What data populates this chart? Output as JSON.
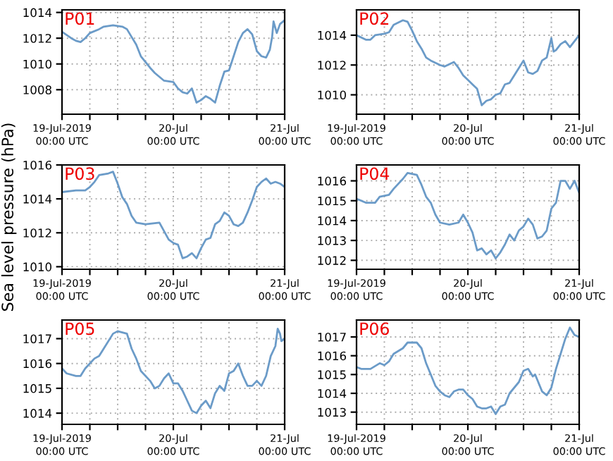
{
  "chart_data": [
    {
      "type": "line",
      "title": "P01",
      "x": [
        "2019-07-19T00:00",
        "2019-07-19T02:00",
        "2019-07-19T03:00",
        "2019-07-19T04:00",
        "2019-07-19T05:00",
        "2019-07-19T06:00",
        "2019-07-19T08:00",
        "2019-07-19T09:00",
        "2019-07-19T11:00",
        "2019-07-19T13:00",
        "2019-07-19T14:00",
        "2019-07-19T15:00",
        "2019-07-19T16:00",
        "2019-07-19T17:00",
        "2019-07-19T19:00",
        "2019-07-19T20:00",
        "2019-07-19T22:00",
        "2019-07-20T00:00",
        "2019-07-20T01:00",
        "2019-07-20T02:00",
        "2019-07-20T03:00",
        "2019-07-20T04:00",
        "2019-07-20T05:00",
        "2019-07-20T06:00",
        "2019-07-20T07:00",
        "2019-07-20T08:00",
        "2019-07-20T09:00",
        "2019-07-20T10:00",
        "2019-07-20T11:00",
        "2019-07-20T12:00",
        "2019-07-20T13:00",
        "2019-07-20T14:00",
        "2019-07-20T15:00",
        "2019-07-20T16:00",
        "2019-07-20T17:00",
        "2019-07-20T18:00",
        "2019-07-20T19:00",
        "2019-07-20T20:00",
        "2019-07-20T20:48",
        "2019-07-20T21:18",
        "2019-07-20T21:36",
        "2019-07-20T22:18",
        "2019-07-20T23:00",
        "2019-07-21T00:00"
      ],
      "series": [
        {
          "color": "#6b9bc8",
          "values": [
            1012.5,
            1012.0,
            1011.8,
            1011.7,
            1012.0,
            1012.4,
            1012.7,
            1012.9,
            1013.0,
            1012.9,
            1012.7,
            1012.1,
            1011.5,
            1010.6,
            1009.7,
            1009.3,
            1008.7,
            1008.6,
            1008.1,
            1007.8,
            1007.7,
            1008.1,
            1007.0,
            1007.2,
            1007.5,
            1007.3,
            1007.0,
            1008.3,
            1009.4,
            1009.5,
            1010.6,
            1011.7,
            1012.4,
            1012.7,
            1012.3,
            1011.0,
            1010.6,
            1010.5,
            1011.1,
            1012.1,
            1013.3,
            1012.4,
            1013.1,
            1013.4
          ]
        }
      ],
      "xlim": [
        "2019-07-19T00:00",
        "2019-07-21T00:00"
      ],
      "ylim": [
        1006.1,
        1014.2
      ],
      "yticks": [
        1008,
        1010,
        1012,
        1014
      ],
      "xticks": [
        {
          "value": "2019-07-19T00:00",
          "label": "19-Jul-2019\n00:00 UTC"
        },
        {
          "value": "2019-07-19T06:00",
          "label": null
        },
        {
          "value": "2019-07-19T12:00",
          "label": null
        },
        {
          "value": "2019-07-19T18:00",
          "label": null
        },
        {
          "value": "2019-07-20T00:00",
          "label": "20-Jul\n00:00 UTC"
        },
        {
          "value": "2019-07-20T06:00",
          "label": null
        },
        {
          "value": "2019-07-20T12:00",
          "label": null
        },
        {
          "value": "2019-07-20T18:00",
          "label": null
        },
        {
          "value": "2019-07-21T00:00",
          "label": "21-Jul\n00:00 UTC"
        }
      ],
      "grid": true
    },
    {
      "type": "line",
      "title": "P02",
      "x": [
        "2019-07-19T00:00",
        "2019-07-19T02:00",
        "2019-07-19T03:00",
        "2019-07-19T04:00",
        "2019-07-19T06:00",
        "2019-07-19T07:00",
        "2019-07-19T08:00",
        "2019-07-19T10:00",
        "2019-07-19T11:00",
        "2019-07-19T12:00",
        "2019-07-19T13:00",
        "2019-07-19T14:00",
        "2019-07-19T15:00",
        "2019-07-19T16:00",
        "2019-07-19T18:00",
        "2019-07-19T19:00",
        "2019-07-19T21:00",
        "2019-07-19T22:00",
        "2019-07-19T23:00",
        "2019-07-20T00:00",
        "2019-07-20T01:00",
        "2019-07-20T02:00",
        "2019-07-20T03:00",
        "2019-07-20T04:00",
        "2019-07-20T05:00",
        "2019-07-20T06:00",
        "2019-07-20T07:00",
        "2019-07-20T08:00",
        "2019-07-20T09:00",
        "2019-07-20T10:00",
        "2019-07-20T11:00",
        "2019-07-20T12:00",
        "2019-07-20T13:00",
        "2019-07-20T14:00",
        "2019-07-20T15:00",
        "2019-07-20T16:00",
        "2019-07-20T17:00",
        "2019-07-20T18:00",
        "2019-07-20T18:30",
        "2019-07-20T19:00",
        "2019-07-20T20:00",
        "2019-07-20T21:00",
        "2019-07-20T22:00",
        "2019-07-20T23:00",
        "2019-07-21T00:00"
      ],
      "series": [
        {
          "color": "#6b9bc8",
          "values": [
            1014.0,
            1013.7,
            1013.7,
            1014.0,
            1014.1,
            1014.2,
            1014.7,
            1015.0,
            1014.9,
            1014.3,
            1013.6,
            1013.1,
            1012.5,
            1012.3,
            1012.0,
            1011.9,
            1012.2,
            1011.8,
            1011.3,
            1011.0,
            1010.7,
            1010.4,
            1009.3,
            1009.6,
            1009.7,
            1010.0,
            1010.1,
            1010.7,
            1010.8,
            1011.3,
            1011.8,
            1012.3,
            1011.5,
            1011.4,
            1011.6,
            1012.3,
            1012.5,
            1013.8,
            1012.9,
            1013.0,
            1013.4,
            1013.6,
            1013.2,
            1013.6,
            1014.0
          ]
        }
      ],
      "xlim": [
        "2019-07-19T00:00",
        "2019-07-21T00:00"
      ],
      "ylim": [
        1008.7,
        1015.7
      ],
      "yticks": [
        1010,
        1012,
        1014
      ],
      "xticks": [
        {
          "value": "2019-07-19T00:00",
          "label": "19-Jul-2019\n00:00 UTC"
        },
        {
          "value": "2019-07-19T06:00",
          "label": null
        },
        {
          "value": "2019-07-19T12:00",
          "label": null
        },
        {
          "value": "2019-07-19T18:00",
          "label": null
        },
        {
          "value": "2019-07-20T00:00",
          "label": "20-Jul\n00:00 UTC"
        },
        {
          "value": "2019-07-20T06:00",
          "label": null
        },
        {
          "value": "2019-07-20T12:00",
          "label": null
        },
        {
          "value": "2019-07-20T18:00",
          "label": null
        },
        {
          "value": "2019-07-21T00:00",
          "label": "21-Jul\n00:00 UTC"
        }
      ],
      "grid": true
    },
    {
      "type": "line",
      "title": "P03",
      "ylabel": "Sea level pressure (hPa)",
      "x": [
        "2019-07-19T00:00",
        "2019-07-19T03:00",
        "2019-07-19T05:00",
        "2019-07-19T06:00",
        "2019-07-19T07:00",
        "2019-07-19T08:00",
        "2019-07-19T10:00",
        "2019-07-19T11:00",
        "2019-07-19T12:00",
        "2019-07-19T13:00",
        "2019-07-19T14:00",
        "2019-07-19T15:00",
        "2019-07-19T16:00",
        "2019-07-19T18:00",
        "2019-07-19T21:00",
        "2019-07-19T22:00",
        "2019-07-19T23:00",
        "2019-07-20T00:00",
        "2019-07-20T01:00",
        "2019-07-20T02:00",
        "2019-07-20T03:00",
        "2019-07-20T04:00",
        "2019-07-20T05:00",
        "2019-07-20T06:00",
        "2019-07-20T07:00",
        "2019-07-20T08:00",
        "2019-07-20T09:00",
        "2019-07-20T10:00",
        "2019-07-20T11:00",
        "2019-07-20T12:00",
        "2019-07-20T13:00",
        "2019-07-20T14:00",
        "2019-07-20T15:00",
        "2019-07-20T16:00",
        "2019-07-20T17:00",
        "2019-07-20T18:00",
        "2019-07-20T19:00",
        "2019-07-20T20:00",
        "2019-07-20T21:00",
        "2019-07-20T22:00",
        "2019-07-20T23:00",
        "2019-07-21T00:00"
      ],
      "series": [
        {
          "color": "#6b9bc8",
          "values": [
            1014.4,
            1014.5,
            1014.5,
            1014.7,
            1015.0,
            1015.4,
            1015.5,
            1015.6,
            1014.9,
            1014.1,
            1013.7,
            1013.0,
            1012.6,
            1012.5,
            1012.6,
            1012.1,
            1011.6,
            1011.4,
            1011.3,
            1010.5,
            1010.6,
            1010.8,
            1010.5,
            1011.1,
            1011.6,
            1011.7,
            1012.5,
            1012.7,
            1013.2,
            1013.0,
            1012.5,
            1012.4,
            1012.6,
            1013.2,
            1013.9,
            1014.7,
            1015.0,
            1015.2,
            1014.9,
            1015.0,
            1014.9,
            1014.7
          ]
        }
      ],
      "xlim": [
        "2019-07-19T00:00",
        "2019-07-21T00:00"
      ],
      "ylim": [
        1009.85,
        1016.0
      ],
      "yticks": [
        1010,
        1012,
        1014,
        1016
      ],
      "xticks": [
        {
          "value": "2019-07-19T00:00",
          "label": "19-Jul-2019\n00:00 UTC"
        },
        {
          "value": "2019-07-19T06:00",
          "label": null
        },
        {
          "value": "2019-07-19T12:00",
          "label": null
        },
        {
          "value": "2019-07-19T18:00",
          "label": null
        },
        {
          "value": "2019-07-20T00:00",
          "label": "20-Jul\n00:00 UTC"
        },
        {
          "value": "2019-07-20T06:00",
          "label": null
        },
        {
          "value": "2019-07-20T12:00",
          "label": null
        },
        {
          "value": "2019-07-20T18:00",
          "label": null
        },
        {
          "value": "2019-07-21T00:00",
          "label": "21-Jul\n00:00 UTC"
        }
      ],
      "grid": true
    },
    {
      "type": "line",
      "title": "P04",
      "x": [
        "2019-07-19T00:00",
        "2019-07-19T02:00",
        "2019-07-19T04:00",
        "2019-07-19T05:00",
        "2019-07-19T07:00",
        "2019-07-19T08:00",
        "2019-07-19T10:00",
        "2019-07-19T11:00",
        "2019-07-19T13:00",
        "2019-07-19T14:00",
        "2019-07-19T15:00",
        "2019-07-19T16:00",
        "2019-07-19T17:00",
        "2019-07-19T18:00",
        "2019-07-19T20:00",
        "2019-07-19T22:00",
        "2019-07-19T23:00",
        "2019-07-20T00:00",
        "2019-07-20T01:00",
        "2019-07-20T02:00",
        "2019-07-20T03:00",
        "2019-07-20T04:00",
        "2019-07-20T05:00",
        "2019-07-20T06:00",
        "2019-07-20T07:00",
        "2019-07-20T08:00",
        "2019-07-20T09:00",
        "2019-07-20T10:00",
        "2019-07-20T11:00",
        "2019-07-20T12:00",
        "2019-07-20T13:00",
        "2019-07-20T14:00",
        "2019-07-20T15:00",
        "2019-07-20T16:00",
        "2019-07-20T17:00",
        "2019-07-20T18:00",
        "2019-07-20T19:00",
        "2019-07-20T20:00",
        "2019-07-20T21:00",
        "2019-07-20T22:00",
        "2019-07-20T23:00",
        "2019-07-21T00:00"
      ],
      "series": [
        {
          "color": "#6b9bc8",
          "values": [
            1015.1,
            1014.9,
            1014.9,
            1015.2,
            1015.3,
            1015.6,
            1016.1,
            1016.4,
            1016.3,
            1015.8,
            1015.2,
            1014.9,
            1014.3,
            1013.9,
            1013.8,
            1013.9,
            1014.3,
            1013.9,
            1013.4,
            1012.5,
            1012.6,
            1012.3,
            1012.5,
            1012.1,
            1012.4,
            1012.8,
            1013.3,
            1013.0,
            1013.5,
            1013.7,
            1014.1,
            1013.8,
            1013.1,
            1013.2,
            1013.5,
            1014.6,
            1014.9,
            1016.0,
            1016.0,
            1015.6,
            1016.0,
            1015.4
          ]
        }
      ],
      "xlim": [
        "2019-07-19T00:00",
        "2019-07-21T00:00"
      ],
      "ylim": [
        1011.55,
        1016.8
      ],
      "yticks": [
        1012,
        1013,
        1014,
        1015,
        1016
      ],
      "xticks": [
        {
          "value": "2019-07-19T00:00",
          "label": "19-Jul-2019\n00:00 UTC"
        },
        {
          "value": "2019-07-19T06:00",
          "label": null
        },
        {
          "value": "2019-07-19T12:00",
          "label": null
        },
        {
          "value": "2019-07-19T18:00",
          "label": null
        },
        {
          "value": "2019-07-20T00:00",
          "label": "20-Jul\n00:00 UTC"
        },
        {
          "value": "2019-07-20T06:00",
          "label": null
        },
        {
          "value": "2019-07-20T12:00",
          "label": null
        },
        {
          "value": "2019-07-20T18:00",
          "label": null
        },
        {
          "value": "2019-07-21T00:00",
          "label": "21-Jul\n00:00 UTC"
        }
      ],
      "grid": true
    },
    {
      "type": "line",
      "title": "P05",
      "x": [
        "2019-07-19T00:00",
        "2019-07-19T01:00",
        "2019-07-19T03:00",
        "2019-07-19T04:00",
        "2019-07-19T05:00",
        "2019-07-19T07:00",
        "2019-07-19T08:00",
        "2019-07-19T09:00",
        "2019-07-19T11:00",
        "2019-07-19T12:00",
        "2019-07-19T14:00",
        "2019-07-19T15:00",
        "2019-07-19T16:00",
        "2019-07-19T17:00",
        "2019-07-19T19:00",
        "2019-07-19T20:00",
        "2019-07-19T21:00",
        "2019-07-19T22:00",
        "2019-07-19T23:00",
        "2019-07-20T00:00",
        "2019-07-20T01:00",
        "2019-07-20T02:00",
        "2019-07-20T03:00",
        "2019-07-20T04:00",
        "2019-07-20T05:00",
        "2019-07-20T06:00",
        "2019-07-20T07:00",
        "2019-07-20T08:00",
        "2019-07-20T09:00",
        "2019-07-20T10:00",
        "2019-07-20T11:00",
        "2019-07-20T12:00",
        "2019-07-20T13:00",
        "2019-07-20T14:00",
        "2019-07-20T15:00",
        "2019-07-20T16:00",
        "2019-07-20T17:00",
        "2019-07-20T18:00",
        "2019-07-20T19:00",
        "2019-07-20T20:00",
        "2019-07-20T21:00",
        "2019-07-20T22:00",
        "2019-07-20T22:30",
        "2019-07-20T23:00",
        "2019-07-20T23:18",
        "2019-07-21T00:00"
      ],
      "series": [
        {
          "color": "#6b9bc8",
          "values": [
            1015.8,
            1015.6,
            1015.5,
            1015.5,
            1015.8,
            1016.2,
            1016.3,
            1016.6,
            1017.2,
            1017.3,
            1017.2,
            1016.6,
            1016.2,
            1015.7,
            1015.3,
            1015.0,
            1015.1,
            1015.4,
            1015.6,
            1015.2,
            1015.2,
            1014.9,
            1014.5,
            1014.1,
            1014.0,
            1014.3,
            1014.5,
            1014.2,
            1014.8,
            1015.1,
            1014.9,
            1015.6,
            1015.7,
            1016.0,
            1015.5,
            1015.1,
            1015.1,
            1015.3,
            1015.1,
            1015.5,
            1016.3,
            1016.7,
            1017.4,
            1017.2,
            1016.9,
            1017.0
          ]
        }
      ],
      "xlim": [
        "2019-07-19T00:00",
        "2019-07-21T00:00"
      ],
      "ylim": [
        1013.55,
        1017.75
      ],
      "yticks": [
        1014,
        1015,
        1016,
        1017
      ],
      "xticks": [
        {
          "value": "2019-07-19T00:00",
          "label": "19-Jul-2019\n00:00 UTC"
        },
        {
          "value": "2019-07-19T06:00",
          "label": null
        },
        {
          "value": "2019-07-19T12:00",
          "label": null
        },
        {
          "value": "2019-07-19T18:00",
          "label": null
        },
        {
          "value": "2019-07-20T00:00",
          "label": "20-Jul\n00:00 UTC"
        },
        {
          "value": "2019-07-20T06:00",
          "label": null
        },
        {
          "value": "2019-07-20T12:00",
          "label": null
        },
        {
          "value": "2019-07-20T18:00",
          "label": null
        },
        {
          "value": "2019-07-21T00:00",
          "label": "21-Jul\n00:00 UTC"
        }
      ],
      "grid": true
    },
    {
      "type": "line",
      "title": "P06",
      "x": [
        "2019-07-19T00:00",
        "2019-07-19T01:00",
        "2019-07-19T03:00",
        "2019-07-19T05:00",
        "2019-07-19T06:00",
        "2019-07-19T07:00",
        "2019-07-19T08:00",
        "2019-07-19T10:00",
        "2019-07-19T11:00",
        "2019-07-19T13:00",
        "2019-07-19T14:00",
        "2019-07-19T15:00",
        "2019-07-19T16:00",
        "2019-07-19T17:00",
        "2019-07-19T18:00",
        "2019-07-19T19:00",
        "2019-07-19T20:00",
        "2019-07-19T21:00",
        "2019-07-19T22:00",
        "2019-07-19T23:00",
        "2019-07-20T00:00",
        "2019-07-20T01:00",
        "2019-07-20T02:00",
        "2019-07-20T03:00",
        "2019-07-20T04:00",
        "2019-07-20T05:00",
        "2019-07-20T06:00",
        "2019-07-20T07:00",
        "2019-07-20T08:00",
        "2019-07-20T09:00",
        "2019-07-20T10:00",
        "2019-07-20T11:00",
        "2019-07-20T12:00",
        "2019-07-20T13:00",
        "2019-07-20T14:00",
        "2019-07-20T14:30",
        "2019-07-20T15:00",
        "2019-07-20T16:00",
        "2019-07-20T17:00",
        "2019-07-20T18:00",
        "2019-07-20T19:00",
        "2019-07-20T20:00",
        "2019-07-20T21:00",
        "2019-07-20T22:00",
        "2019-07-20T23:00",
        "2019-07-21T00:00"
      ],
      "series": [
        {
          "color": "#6b9bc8",
          "values": [
            1015.4,
            1015.3,
            1015.3,
            1015.6,
            1015.5,
            1015.7,
            1016.1,
            1016.4,
            1016.7,
            1016.7,
            1016.4,
            1015.6,
            1015.0,
            1014.4,
            1014.1,
            1013.9,
            1013.8,
            1014.1,
            1014.2,
            1014.2,
            1013.9,
            1013.7,
            1013.3,
            1013.2,
            1013.2,
            1013.3,
            1012.9,
            1013.3,
            1013.4,
            1014.0,
            1014.3,
            1014.6,
            1015.2,
            1015.3,
            1014.9,
            1015.0,
            1014.7,
            1014.1,
            1013.9,
            1014.3,
            1015.3,
            1016.1,
            1016.9,
            1017.5,
            1017.1,
            1017.0
          ]
        }
      ],
      "xlim": [
        "2019-07-19T00:00",
        "2019-07-21T00:00"
      ],
      "ylim": [
        1012.35,
        1017.9
      ],
      "yticks": [
        1013,
        1014,
        1015,
        1016,
        1017
      ],
      "xticks": [
        {
          "value": "2019-07-19T00:00",
          "label": "19-Jul-2019\n00:00 UTC"
        },
        {
          "value": "2019-07-19T06:00",
          "label": null
        },
        {
          "value": "2019-07-19T12:00",
          "label": null
        },
        {
          "value": "2019-07-19T18:00",
          "label": null
        },
        {
          "value": "2019-07-20T00:00",
          "label": "20-Jul\n00:00 UTC"
        },
        {
          "value": "2019-07-20T06:00",
          "label": null
        },
        {
          "value": "2019-07-20T12:00",
          "label": null
        },
        {
          "value": "2019-07-20T18:00",
          "label": null
        },
        {
          "value": "2019-07-21T00:00",
          "label": "21-Jul\n00:00 UTC"
        }
      ],
      "grid": true
    }
  ]
}
